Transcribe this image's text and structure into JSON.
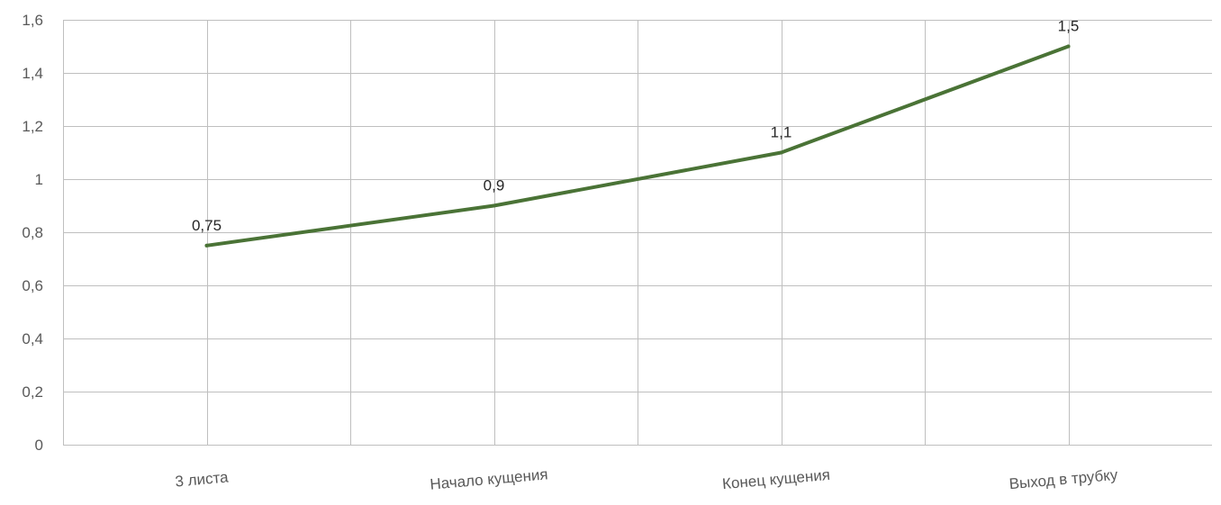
{
  "chart_data": {
    "type": "line",
    "title": "",
    "xlabel": "",
    "ylabel": "",
    "categories": [
      "3 листа",
      "Начало кущения",
      "Конец кущения",
      "Выход в трубку"
    ],
    "series": [
      {
        "values": [
          0.75,
          0.9,
          1.1,
          1.5
        ],
        "data_labels": [
          "0,75",
          "0,9",
          "1,1",
          "1,5"
        ],
        "color": "#4a7336"
      }
    ],
    "ylim": [
      0,
      1.6
    ],
    "y_ticks": [
      0,
      0.2,
      0.4,
      0.6,
      0.8,
      1,
      1.2,
      1.4,
      1.6
    ],
    "y_tick_labels": [
      "0",
      "0,2",
      "0,4",
      "0,6",
      "0,8",
      "1",
      "1,2",
      "1,4",
      "1,6"
    ],
    "grid": true,
    "legend": "none",
    "colors": {
      "grid": "#bfbfbf",
      "tick_text": "#595959",
      "label_text": "#262626"
    }
  }
}
